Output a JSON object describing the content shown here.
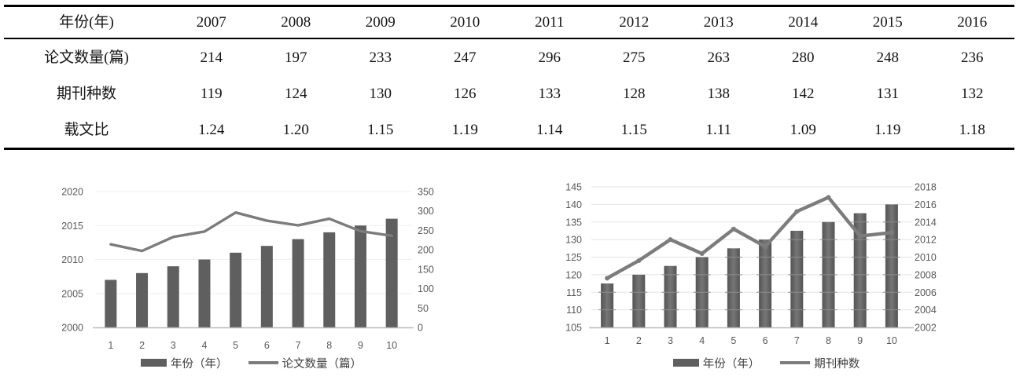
{
  "table": {
    "rows": [
      {
        "label": "年份(年)",
        "values": [
          "2007",
          "2008",
          "2009",
          "2010",
          "2011",
          "2012",
          "2013",
          "2014",
          "2015",
          "2016"
        ]
      },
      {
        "label": "论文数量(篇)",
        "values": [
          "214",
          "197",
          "233",
          "247",
          "296",
          "275",
          "263",
          "280",
          "248",
          "236"
        ]
      },
      {
        "label": "期刊种数",
        "values": [
          "119",
          "124",
          "130",
          "126",
          "133",
          "128",
          "138",
          "142",
          "131",
          "132"
        ]
      },
      {
        "label": "载文比",
        "values": [
          "1.24",
          "1.20",
          "1.15",
          "1.19",
          "1.14",
          "1.15",
          "1.11",
          "1.09",
          "1.19",
          "1.18"
        ]
      }
    ]
  },
  "chart_data": [
    {
      "type": "bar",
      "subtype": "combo-bar-line-dual-axis",
      "categories": [
        "1",
        "2",
        "3",
        "4",
        "5",
        "6",
        "7",
        "8",
        "9",
        "10"
      ],
      "series": [
        {
          "name": "年份（年）",
          "type": "bar",
          "axis": "left",
          "values": [
            2007,
            2008,
            2009,
            2010,
            2011,
            2012,
            2013,
            2014,
            2015,
            2016
          ]
        },
        {
          "name": "论文数量（篇）",
          "type": "line",
          "axis": "right",
          "values": [
            214,
            197,
            233,
            247,
            296,
            275,
            263,
            280,
            248,
            236
          ]
        }
      ],
      "left_axis": {
        "min": 2000,
        "max": 2020,
        "ticks": [
          2000,
          2005,
          2010,
          2015,
          2020
        ]
      },
      "right_axis": {
        "min": 0,
        "max": 350,
        "ticks": [
          0,
          50,
          100,
          150,
          200,
          250,
          300,
          350
        ]
      },
      "xlabel": "",
      "ylabel": "",
      "legend_position": "bottom",
      "grid": "horizontal-faint"
    },
    {
      "type": "bar",
      "subtype": "combo-bar-line-dual-axis",
      "categories": [
        "1",
        "2",
        "3",
        "4",
        "5",
        "6",
        "7",
        "8",
        "9",
        "10"
      ],
      "series": [
        {
          "name": "年份（年）",
          "type": "bar",
          "axis": "right",
          "values": [
            2007,
            2008,
            2009,
            2010,
            2011,
            2012,
            2013,
            2014,
            2015,
            2016
          ]
        },
        {
          "name": "期刊种数",
          "type": "line",
          "axis": "left",
          "values": [
            119,
            124,
            130,
            126,
            133,
            128,
            138,
            142,
            131,
            132
          ]
        }
      ],
      "left_axis": {
        "min": 105,
        "max": 145,
        "ticks": [
          105,
          110,
          115,
          120,
          125,
          130,
          135,
          140,
          145
        ]
      },
      "right_axis": {
        "min": 2002,
        "max": 2018,
        "ticks": [
          2002,
          2004,
          2006,
          2008,
          2010,
          2012,
          2014,
          2016,
          2018
        ]
      },
      "xlabel": "",
      "ylabel": "",
      "legend_position": "bottom",
      "grid": "horizontal"
    }
  ],
  "colors": {
    "bar": "#5f5f5f",
    "line": "#7c7c7c",
    "axis_text": "#595959",
    "legend_text": "#3d3d3d",
    "table_text": "#141414",
    "table_border": "#000000"
  }
}
